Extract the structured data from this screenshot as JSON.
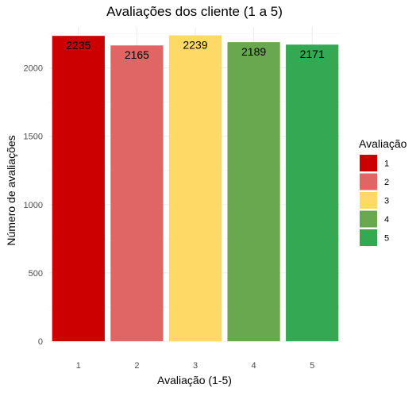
{
  "chart_data": {
    "type": "bar",
    "title": "Avaliações dos cliente (1 a 5)",
    "xlabel": "Avaliação (1-5)",
    "ylabel": "Número de avaliações",
    "categories": [
      "1",
      "2",
      "3",
      "4",
      "5"
    ],
    "values": [
      2235,
      2165,
      2239,
      2189,
      2171
    ],
    "data_labels": [
      "2235",
      "2165",
      "2239",
      "2189",
      "2171"
    ],
    "colors": [
      "#cc0000",
      "#e06666",
      "#ffd966",
      "#6aa84f",
      "#34a853"
    ],
    "ylim": [
      0,
      2300
    ],
    "yticks": [
      0,
      500,
      1000,
      1500,
      2000
    ],
    "ytick_labels": [
      "0",
      "500",
      "1000",
      "1500",
      "2000"
    ],
    "grid": true,
    "legend": {
      "title": "Avaliação",
      "position": "right",
      "entries": [
        "1",
        "2",
        "3",
        "4",
        "5"
      ]
    }
  }
}
